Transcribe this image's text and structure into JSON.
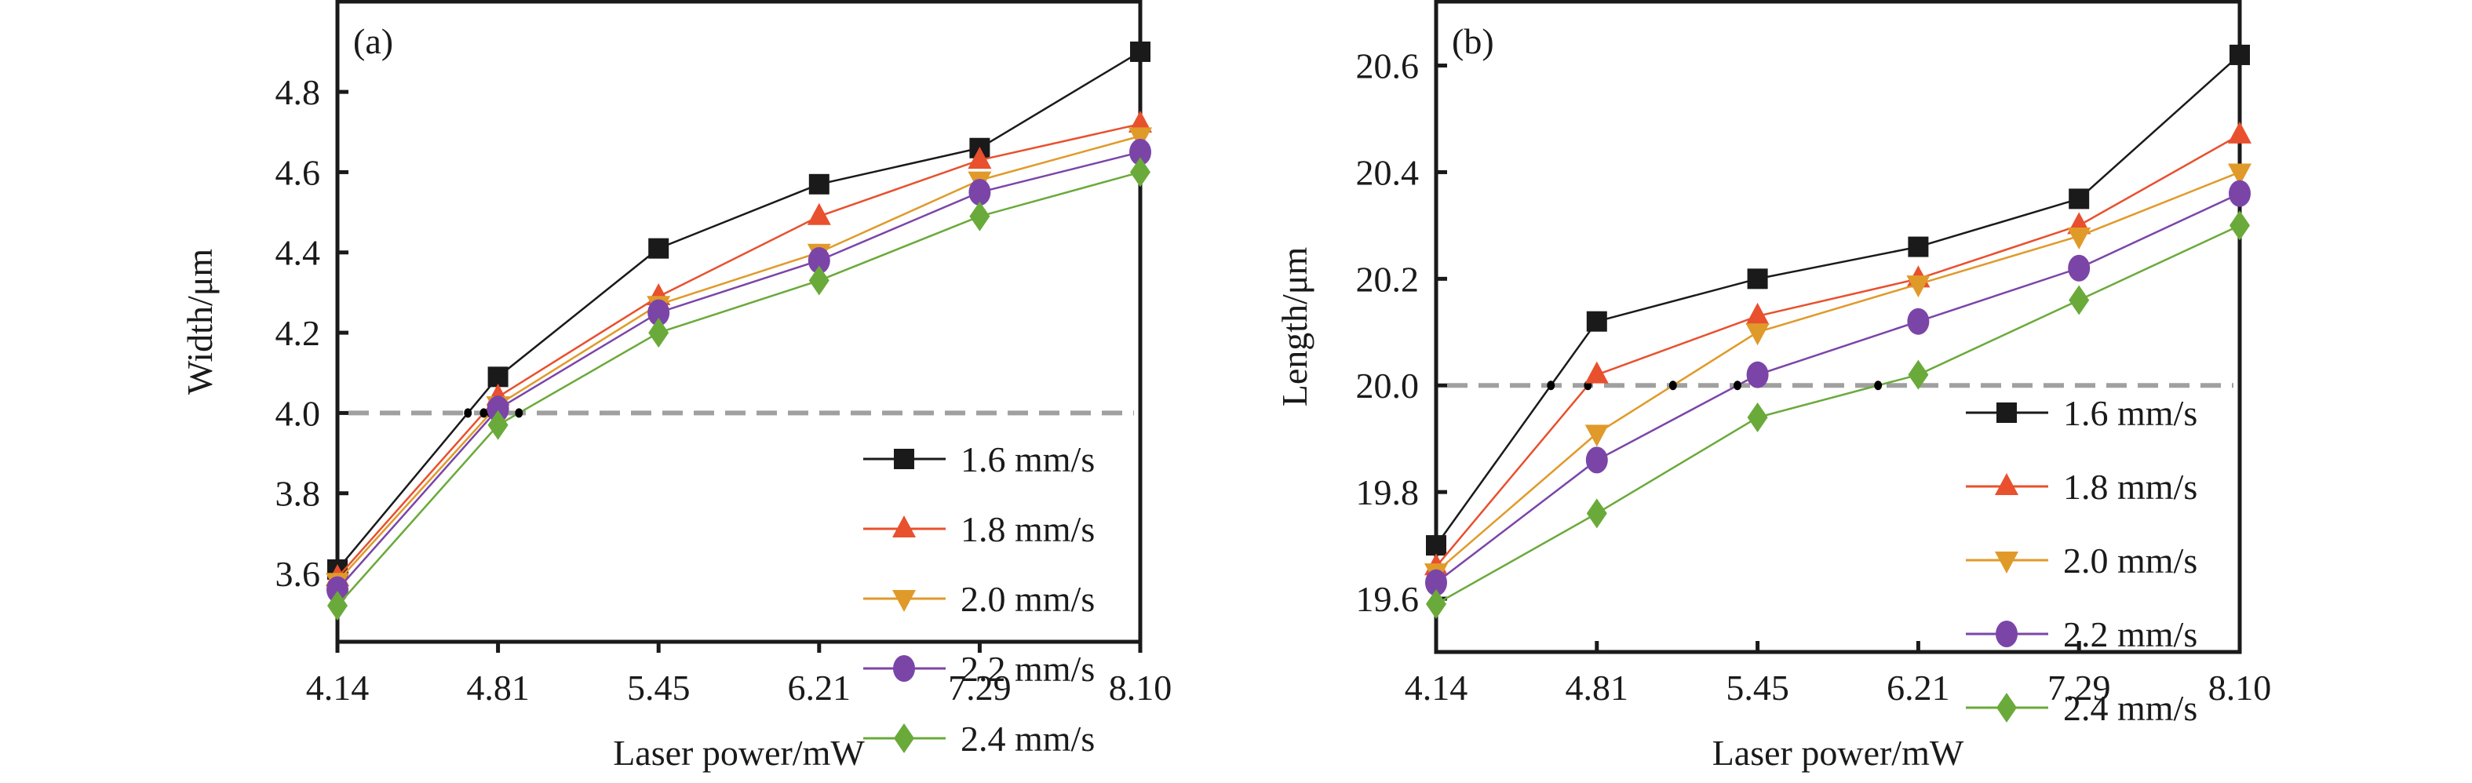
{
  "chart_data": [
    {
      "type": "line",
      "panel_label": "(a)",
      "title": "",
      "xlabel": "Laser power/mW",
      "ylabel": "Width/μm",
      "categories": [
        "4.14",
        "4.81",
        "5.45",
        "6.21",
        "7.29",
        "8.10"
      ],
      "yticks": [
        "3.6",
        "3.8",
        "4.0",
        "4.2",
        "4.4",
        "4.6",
        "4.8"
      ],
      "ylim": [
        3.43,
        5.025
      ],
      "reference_line": {
        "y": 4.0,
        "style": "dashed",
        "color": "#a0a0a0"
      },
      "legend_position": "bottom-right",
      "grid": false,
      "series": [
        {
          "name": "1.6 mm/s",
          "marker": "square",
          "color": "#1a1a1a",
          "values": [
            3.61,
            4.09,
            4.41,
            4.57,
            4.66,
            4.9
          ]
        },
        {
          "name": "1.8 mm/s",
          "marker": "triangle-up",
          "color": "#e8502e",
          "values": [
            3.59,
            4.04,
            4.29,
            4.49,
            4.63,
            4.72
          ]
        },
        {
          "name": "2.0 mm/s",
          "marker": "triangle-down",
          "color": "#e09a2a",
          "values": [
            3.58,
            4.02,
            4.27,
            4.4,
            4.58,
            4.69
          ]
        },
        {
          "name": "2.2 mm/s",
          "marker": "circle",
          "color": "#7b45a8",
          "values": [
            3.56,
            4.01,
            4.25,
            4.38,
            4.55,
            4.65
          ]
        },
        {
          "name": "2.4 mm/s",
          "marker": "diamond",
          "color": "#6aaa3a",
          "values": [
            3.52,
            3.97,
            4.2,
            4.33,
            4.49,
            4.6
          ]
        }
      ]
    },
    {
      "type": "line",
      "panel_label": "(b)",
      "title": "",
      "xlabel": "Laser power/mW",
      "ylabel": "Length/μm",
      "categories": [
        "4.14",
        "4.81",
        "5.45",
        "6.21",
        "7.29",
        "8.10"
      ],
      "yticks": [
        "19.6",
        "19.8",
        "20.0",
        "20.2",
        "20.4",
        "20.6"
      ],
      "ylim": [
        19.5,
        20.72
      ],
      "reference_line": {
        "y": 20.0,
        "style": "dashed",
        "color": "#a0a0a0"
      },
      "legend_position": "bottom-right",
      "grid": false,
      "series": [
        {
          "name": "1.6 mm/s",
          "marker": "square",
          "color": "#1a1a1a",
          "values": [
            19.7,
            20.12,
            20.2,
            20.26,
            20.35,
            20.62
          ]
        },
        {
          "name": "1.8 mm/s",
          "marker": "triangle-up",
          "color": "#e8502e",
          "values": [
            19.66,
            20.02,
            20.13,
            20.2,
            20.3,
            20.47
          ]
        },
        {
          "name": "2.0 mm/s",
          "marker": "triangle-down",
          "color": "#e09a2a",
          "values": [
            19.65,
            19.91,
            20.1,
            20.19,
            20.28,
            20.4
          ]
        },
        {
          "name": "2.2 mm/s",
          "marker": "circle",
          "color": "#7b45a8",
          "values": [
            19.63,
            19.86,
            20.02,
            20.12,
            20.22,
            20.36
          ]
        },
        {
          "name": "2.4 mm/s",
          "marker": "diamond",
          "color": "#6aaa3a",
          "values": [
            19.59,
            19.76,
            19.94,
            20.02,
            20.16,
            20.3
          ]
        }
      ]
    }
  ]
}
